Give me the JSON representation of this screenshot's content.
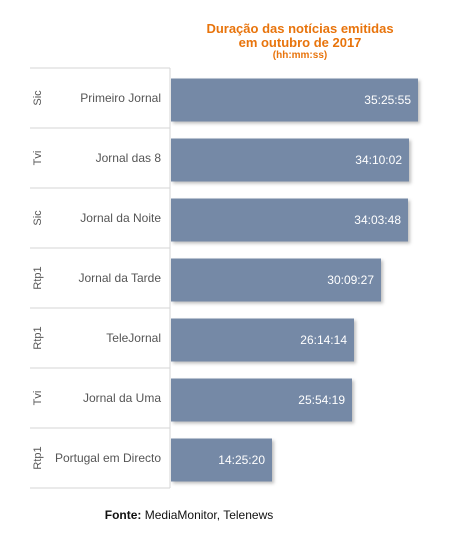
{
  "chart_data": {
    "type": "bar",
    "orientation": "horizontal",
    "title": "Duração das notícias emitidas",
    "title_line2": "em outubro de 2017",
    "subtitle": "(hh:mm:ss)",
    "groups": [
      "Sic",
      "Tvi",
      "Sic",
      "Rtp1",
      "Rtp1",
      "Tvi",
      "Rtp1"
    ],
    "categories": [
      "Primeiro Jornal",
      "Jornal das 8",
      "Jornal da Noite",
      "Jornal da Tarde",
      "TeleJornal",
      "Jornal da Uma",
      "Portugal em Directo"
    ],
    "value_labels": [
      "35:25:55",
      "34:10:02",
      "34:03:48",
      "30:09:27",
      "26:14:14",
      "25:54:19",
      "14:25:20"
    ],
    "values_seconds": [
      127555,
      123002,
      122628,
      108567,
      94454,
      93259,
      51920
    ],
    "xlim": [
      0,
      127555
    ],
    "bar_color": "#7489a6",
    "label_color": "#ffffff",
    "grid": false
  },
  "source": {
    "label": "Fonte:",
    "text": " MediaMonitor, Telenews"
  }
}
